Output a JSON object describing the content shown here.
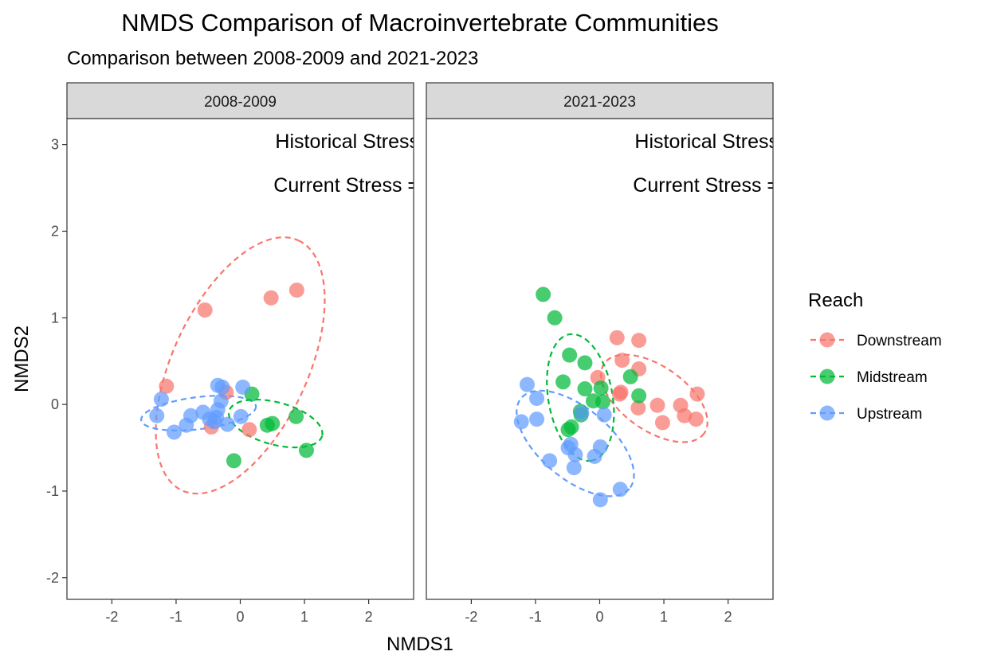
{
  "chart_data": {
    "type": "scatter",
    "title": "NMDS Comparison of Macroinvertebrate Communities",
    "subtitle": "Comparison between 2008-2009 and 2021-2023",
    "xlabel": "NMDS1",
    "ylabel": "NMDS2",
    "xlim": [
      -2.7,
      2.7
    ],
    "ylim": [
      -2.25,
      3.3
    ],
    "xticks": [
      -2,
      -1,
      0,
      1,
      2
    ],
    "yticks": [
      -2,
      -1,
      0,
      1,
      2,
      3
    ],
    "grid": false,
    "legend": {
      "title": "Reach",
      "position": "right",
      "entries": [
        {
          "name": "Downstream",
          "color": "#F8766D"
        },
        {
          "name": "Midstream",
          "color": "#00BA38"
        },
        {
          "name": "Upstream",
          "color": "#619CFF"
        }
      ]
    },
    "panels": [
      {
        "label": "2008-2009",
        "annotations": [
          "Historical Stress",
          "Current Stress ="
        ],
        "series": [
          {
            "reach": "Downstream",
            "points": [
              [
                -0.55,
                1.09
              ],
              [
                0.48,
                1.23
              ],
              [
                0.88,
                1.32
              ],
              [
                -1.15,
                0.21
              ],
              [
                -0.22,
                0.14
              ],
              [
                0.14,
                -0.29
              ],
              [
                -0.45,
                -0.26
              ]
            ]
          },
          {
            "reach": "Midstream",
            "points": [
              [
                0.18,
                0.12
              ],
              [
                0.42,
                -0.24
              ],
              [
                0.5,
                -0.22
              ],
              [
                0.87,
                -0.14
              ],
              [
                1.03,
                -0.53
              ],
              [
                -0.1,
                -0.65
              ]
            ]
          },
          {
            "reach": "Upstream",
            "points": [
              [
                -1.23,
                0.06
              ],
              [
                -1.3,
                -0.13
              ],
              [
                -1.03,
                -0.32
              ],
              [
                -0.84,
                -0.24
              ],
              [
                -0.77,
                -0.13
              ],
              [
                -0.58,
                -0.09
              ],
              [
                -0.48,
                -0.17
              ],
              [
                -0.4,
                -0.2
              ],
              [
                -0.37,
                -0.15
              ],
              [
                -0.35,
                -0.06
              ],
              [
                -0.35,
                0.22
              ],
              [
                -0.28,
                0.2
              ],
              [
                -0.3,
                0.04
              ],
              [
                -0.2,
                -0.23
              ],
              [
                0.01,
                -0.14
              ],
              [
                0.04,
                0.2
              ]
            ]
          }
        ],
        "ellipses": [
          {
            "reach": "Downstream",
            "center": [
              0.0,
              0.45
            ],
            "semi_major": 2.15,
            "semi_minor": 1.05,
            "angle_deg": 65
          },
          {
            "reach": "Midstream",
            "center": [
              0.55,
              -0.22
            ],
            "semi_major": 0.75,
            "semi_minor": 0.33,
            "angle_deg": -15
          },
          {
            "reach": "Upstream",
            "center": [
              -0.65,
              -0.1
            ],
            "semi_major": 0.9,
            "semi_minor": 0.25,
            "angle_deg": 7
          }
        ]
      },
      {
        "label": "2021-2023",
        "annotations": [
          "Historical Stress",
          "Current Stress ="
        ],
        "series": [
          {
            "reach": "Downstream",
            "points": [
              [
                0.27,
                0.77
              ],
              [
                0.61,
                0.74
              ],
              [
                0.35,
                0.51
              ],
              [
                0.61,
                0.41
              ],
              [
                -0.03,
                0.31
              ],
              [
                0.31,
                0.12
              ],
              [
                0.33,
                0.14
              ],
              [
                0.6,
                -0.04
              ],
              [
                0.9,
                -0.01
              ],
              [
                0.98,
                -0.21
              ],
              [
                1.26,
                -0.01
              ],
              [
                1.32,
                -0.13
              ],
              [
                1.5,
                -0.17
              ],
              [
                1.52,
                0.12
              ]
            ]
          },
          {
            "reach": "Midstream",
            "points": [
              [
                -0.88,
                1.27
              ],
              [
                -0.7,
                1.0
              ],
              [
                -0.47,
                0.57
              ],
              [
                -0.23,
                0.48
              ],
              [
                -0.57,
                0.26
              ],
              [
                -0.23,
                0.18
              ],
              [
                0.02,
                0.19
              ],
              [
                -0.1,
                0.04
              ],
              [
                0.05,
                0.03
              ],
              [
                0.48,
                0.32
              ],
              [
                0.61,
                0.1
              ],
              [
                -0.3,
                -0.08
              ],
              [
                -0.29,
                -0.12
              ],
              [
                -0.44,
                -0.26
              ],
              [
                -0.49,
                -0.29
              ]
            ]
          },
          {
            "reach": "Upstream",
            "points": [
              [
                -1.13,
                0.23
              ],
              [
                -0.98,
                0.07
              ],
              [
                -0.98,
                -0.17
              ],
              [
                -1.22,
                -0.2
              ],
              [
                -0.28,
                -0.1
              ],
              [
                0.07,
                -0.12
              ],
              [
                -0.45,
                -0.46
              ],
              [
                -0.49,
                -0.5
              ],
              [
                -0.38,
                -0.58
              ],
              [
                -0.08,
                -0.6
              ],
              [
                0.01,
                -0.49
              ],
              [
                -0.78,
                -0.65
              ],
              [
                -0.4,
                -0.73
              ],
              [
                0.32,
                -0.98
              ],
              [
                0.01,
                -1.1
              ]
            ]
          }
        ],
        "ellipses": [
          {
            "reach": "Downstream",
            "center": [
              0.85,
              0.07
            ],
            "semi_major": 0.95,
            "semi_minor": 0.5,
            "angle_deg": -35
          },
          {
            "reach": "Midstream",
            "center": [
              -0.3,
              0.08
            ],
            "semi_major": 1.0,
            "semi_minor": 0.5,
            "angle_deg": -80
          },
          {
            "reach": "Upstream",
            "center": [
              -0.38,
              -0.45
            ],
            "semi_major": 1.1,
            "semi_minor": 0.55,
            "angle_deg": -40
          }
        ]
      }
    ]
  }
}
